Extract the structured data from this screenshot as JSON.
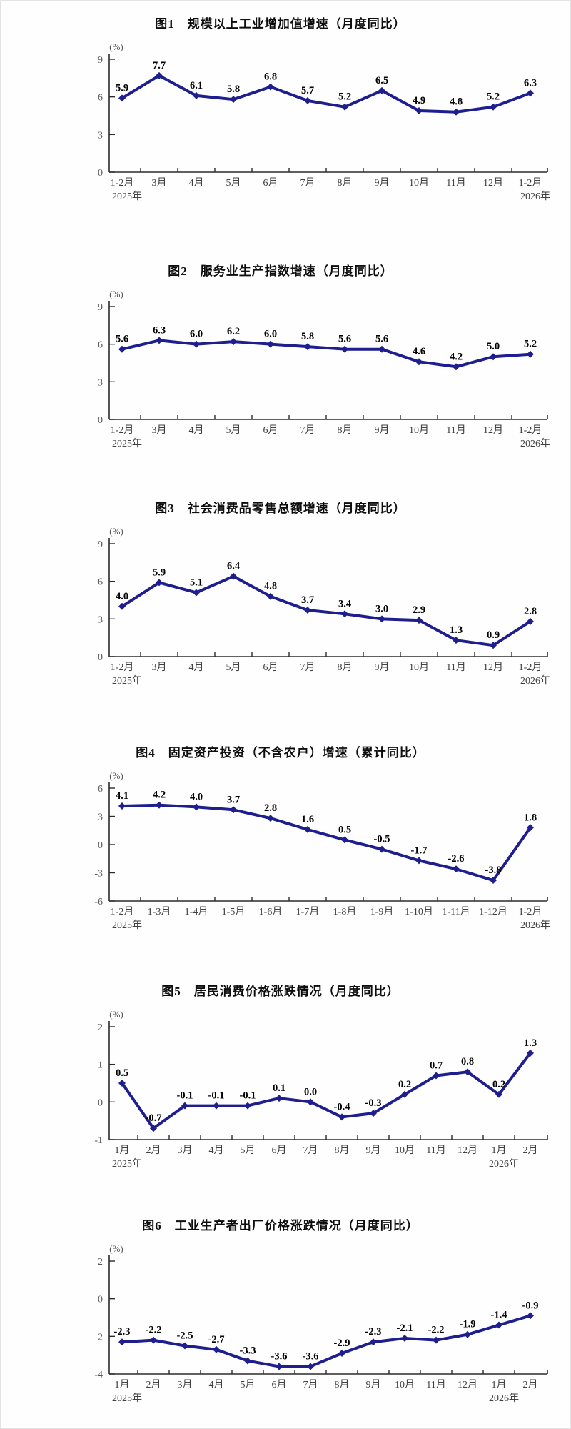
{
  "page": {
    "background": "#fefefe"
  },
  "style": {
    "line_color": "#1e1e8f",
    "marker_color": "#1e1e8f",
    "data_label_color": "#000000",
    "axis_color": "#2b2b2b",
    "ytick_label_color": "#595959",
    "xtick_label_color": "#404040",
    "title_color": "#0d0d0d"
  },
  "chart_data": [
    {
      "type": "line",
      "title": "图1　规模以上工业增加值增速（月度同比）",
      "unit_label": "(%)",
      "categories": [
        "1-2月",
        "3月",
        "4月",
        "5月",
        "6月",
        "7月",
        "8月",
        "9月",
        "10月",
        "11月",
        "12月",
        "1-2月"
      ],
      "year_labels": [
        {
          "index": 0,
          "label": "2025年"
        },
        {
          "index": 11,
          "label": "2026年"
        }
      ],
      "values": [
        5.9,
        7.7,
        6.1,
        5.8,
        6.8,
        5.7,
        5.2,
        6.5,
        4.9,
        4.8,
        5.2,
        6.3
      ],
      "ylim": [
        0,
        9
      ],
      "yticks": [
        0,
        3,
        6,
        9
      ],
      "grid": false,
      "legend": "none"
    },
    {
      "type": "line",
      "title": "图2　服务业生产指数增速（月度同比）",
      "unit_label": "(%)",
      "categories": [
        "1-2月",
        "3月",
        "4月",
        "5月",
        "6月",
        "7月",
        "8月",
        "9月",
        "10月",
        "11月",
        "12月",
        "1-2月"
      ],
      "year_labels": [
        {
          "index": 0,
          "label": "2025年"
        },
        {
          "index": 11,
          "label": "2026年"
        }
      ],
      "values": [
        5.6,
        6.3,
        6.0,
        6.2,
        6.0,
        5.8,
        5.6,
        5.6,
        4.6,
        4.2,
        5.0,
        5.2
      ],
      "ylim": [
        0,
        9
      ],
      "yticks": [
        0,
        3,
        6,
        9
      ],
      "grid": false,
      "legend": "none"
    },
    {
      "type": "line",
      "title": "图3　社会消费品零售总额增速（月度同比）",
      "unit_label": "(%)",
      "categories": [
        "1-2月",
        "3月",
        "4月",
        "5月",
        "6月",
        "7月",
        "8月",
        "9月",
        "10月",
        "11月",
        "12月",
        "1-2月"
      ],
      "year_labels": [
        {
          "index": 0,
          "label": "2025年"
        },
        {
          "index": 11,
          "label": "2026年"
        }
      ],
      "values": [
        4.0,
        5.9,
        5.1,
        6.4,
        4.8,
        3.7,
        3.4,
        3.0,
        2.9,
        1.3,
        0.9,
        2.8
      ],
      "ylim": [
        0,
        9
      ],
      "yticks": [
        0,
        3,
        6,
        9
      ],
      "grid": false,
      "legend": "none"
    },
    {
      "type": "line",
      "title": "图4　固定资产投资（不含农户）增速（累计同比）",
      "unit_label": "(%)",
      "categories": [
        "1-2月",
        "1-3月",
        "1-4月",
        "1-5月",
        "1-6月",
        "1-7月",
        "1-8月",
        "1-9月",
        "1-10月",
        "1-11月",
        "1-12月",
        "1-2月"
      ],
      "year_labels": [
        {
          "index": 0,
          "label": "2025年"
        },
        {
          "index": 11,
          "label": "2026年"
        }
      ],
      "values": [
        4.1,
        4.2,
        4.0,
        3.7,
        2.8,
        1.6,
        0.5,
        -0.5,
        -1.7,
        -2.6,
        -3.8,
        1.8
      ],
      "ylim": [
        -6,
        6
      ],
      "yticks": [
        -6,
        -3,
        0,
        3,
        6
      ],
      "grid": false,
      "legend": "none"
    },
    {
      "type": "line",
      "title": "图5　居民消费价格涨跌情况（月度同比）",
      "unit_label": "(%)",
      "categories": [
        "1月",
        "2月",
        "3月",
        "4月",
        "5月",
        "6月",
        "7月",
        "8月",
        "9月",
        "10月",
        "11月",
        "12月",
        "1月",
        "2月"
      ],
      "year_labels": [
        {
          "index": 0,
          "label": "2025年"
        },
        {
          "index": 12,
          "label": "2026年"
        }
      ],
      "values": [
        0.5,
        -0.7,
        -0.1,
        -0.1,
        -0.1,
        0.1,
        0.0,
        -0.4,
        -0.3,
        0.2,
        0.7,
        0.8,
        0.2,
        1.3
      ],
      "ylim": [
        -1,
        2
      ],
      "yticks": [
        -1,
        0,
        1,
        2
      ],
      "grid": false,
      "legend": "none"
    },
    {
      "type": "line",
      "title": "图6　工业生产者出厂价格涨跌情况（月度同比）",
      "unit_label": "(%)",
      "categories": [
        "1月",
        "2月",
        "3月",
        "4月",
        "5月",
        "6月",
        "7月",
        "8月",
        "9月",
        "10月",
        "11月",
        "12月",
        "1月",
        "2月"
      ],
      "year_labels": [
        {
          "index": 0,
          "label": "2025年"
        },
        {
          "index": 12,
          "label": "2026年"
        }
      ],
      "values": [
        -2.3,
        -2.2,
        -2.5,
        -2.7,
        -3.3,
        -3.6,
        -3.6,
        -2.9,
        -2.3,
        -2.1,
        -2.2,
        -1.9,
        -1.4,
        -0.9
      ],
      "ylim": [
        -4,
        2
      ],
      "yticks": [
        -4,
        -2,
        0,
        2
      ],
      "grid": false,
      "legend": "none"
    }
  ]
}
